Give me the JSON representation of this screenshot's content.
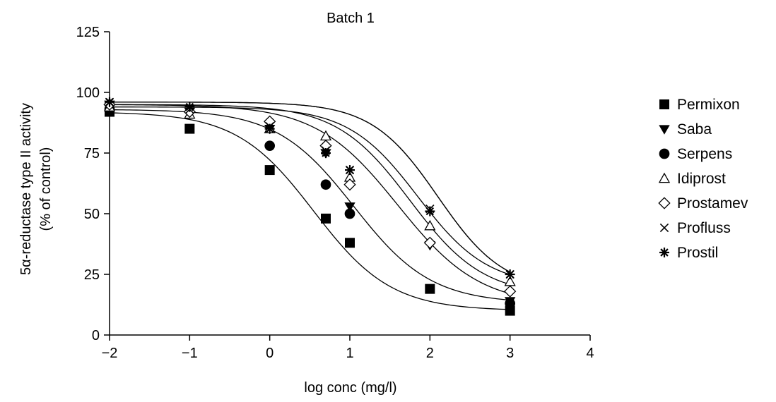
{
  "chart_data": {
    "type": "scatter",
    "title": "Batch 1",
    "xlabel": "log conc (mg/l)",
    "ylabel_line1": "5α-reductase type II activity",
    "ylabel_line2": "(% of control)",
    "xlim": [
      -2,
      4
    ],
    "ylim": [
      0,
      125
    ],
    "xticks": [
      -2,
      -1,
      0,
      1,
      2,
      3,
      4
    ],
    "xtick_labels": [
      "−2",
      "−1",
      "0",
      "1",
      "2",
      "3",
      "4"
    ],
    "yticks": [
      0,
      25,
      50,
      75,
      100,
      125
    ],
    "ytick_labels": [
      "0",
      "25",
      "50",
      "75",
      "100",
      "125"
    ],
    "grid": false,
    "legend_position": "right",
    "series": [
      {
        "name": "Permixon",
        "marker": "filled-square",
        "x": [
          -2,
          -1,
          0,
          0.7,
          1,
          2,
          3
        ],
        "y": [
          92,
          85,
          68,
          48,
          38,
          19,
          10
        ],
        "fit": {
          "top": 92,
          "bottom": 10,
          "ic50": 0.55,
          "hill": 0.9
        }
      },
      {
        "name": "Saba",
        "marker": "filled-triangle-down",
        "x": [
          -2,
          -1,
          0,
          0.7,
          1,
          2,
          3
        ],
        "y": [
          95,
          92,
          85,
          75,
          53,
          37,
          14
        ],
        "fit": {
          "top": 95,
          "bottom": 12,
          "ic50": 1.6,
          "hill": 0.85
        }
      },
      {
        "name": "Serpens",
        "marker": "filled-circle",
        "x": [
          -2,
          0,
          0.7,
          1,
          3
        ],
        "y": [
          93,
          78,
          62,
          50,
          13
        ],
        "fit": {
          "top": 93,
          "bottom": 13,
          "ic50": 1.05,
          "hill": 0.9
        }
      },
      {
        "name": "Idiprost",
        "marker": "open-triangle-up",
        "x": [
          -2,
          -1,
          0,
          0.7,
          1,
          2,
          3
        ],
        "y": [
          94,
          91,
          85,
          82,
          65,
          45,
          22
        ],
        "fit": {
          "top": 94,
          "bottom": 20,
          "ic50": 1.85,
          "hill": 1.0
        }
      },
      {
        "name": "Prostamev",
        "marker": "open-diamond",
        "x": [
          -2,
          -1,
          0,
          0.7,
          1,
          2,
          3
        ],
        "y": [
          95,
          92,
          88,
          78,
          62,
          38,
          18
        ],
        "fit": {
          "top": 95,
          "bottom": 16,
          "ic50": 1.75,
          "hill": 0.95
        }
      },
      {
        "name": "Profluss",
        "marker": "cross",
        "x": [
          -2,
          -1,
          0,
          0.7,
          1,
          2,
          3
        ],
        "y": [
          96,
          93,
          86,
          76,
          68,
          52,
          25
        ],
        "fit": {
          "top": 96,
          "bottom": 18,
          "ic50": 2.1,
          "hill": 1.05
        }
      },
      {
        "name": "Prostil",
        "marker": "asterisk",
        "x": [
          -2,
          -1,
          0,
          0.7,
          1,
          2,
          3
        ],
        "y": [
          96,
          94,
          85,
          75,
          68,
          51,
          25
        ],
        "fit": {
          "top": 96,
          "bottom": 18,
          "ic50": 2.1,
          "hill": 1.05
        }
      }
    ]
  }
}
